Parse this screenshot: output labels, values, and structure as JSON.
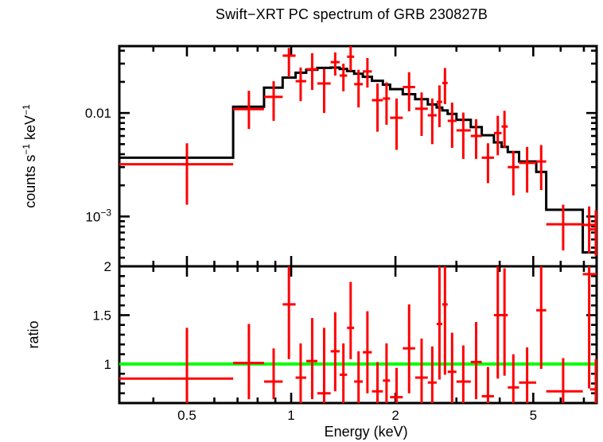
{
  "title": "Swift−XRT PC spectrum of GRB 230827B",
  "colors": {
    "data": "#ff0000",
    "model": "#000000",
    "reference_line": "#00ff00",
    "axes": "#000000",
    "background": "#ffffff"
  },
  "chart_data": [
    {
      "type": "scatter",
      "panel": "spectrum",
      "title": "Swift−XRT PC spectrum of GRB 230827B",
      "xscale": "log",
      "yscale": "log",
      "xlim": [
        0.319,
        7.62
      ],
      "ylim": [
        0.00033,
        0.0443
      ],
      "xlabel": "Energy (keV)",
      "ylabel": "counts s^-1 keV^-1",
      "ylabel_parts": [
        [
          "counts s",
          0
        ],
        [
          "−1",
          1
        ],
        [
          " keV",
          0
        ],
        [
          "−1",
          1
        ]
      ],
      "x_ticks": {
        "major": [
          0.5,
          1,
          2,
          5
        ],
        "minor": [
          0.4,
          0.6,
          0.7,
          0.8,
          0.9,
          3,
          4,
          6,
          7
        ],
        "labels": [
          "0.5",
          "1",
          "2",
          "5"
        ]
      },
      "y_ticks": {
        "major": [
          0.001,
          0.01
        ],
        "minor": [
          0.0004,
          0.0005,
          0.0006,
          0.0007,
          0.0008,
          0.0009,
          0.002,
          0.003,
          0.004,
          0.005,
          0.006,
          0.007,
          0.008,
          0.009,
          0.02,
          0.03,
          0.04
        ],
        "labels_parts": [
          [
            [
              "10",
              0
            ],
            [
              "−3",
              1
            ]
          ],
          [
            [
              "0.01",
              0
            ]
          ]
        ]
      },
      "legend": "none",
      "grid": false,
      "model_step": {
        "edges": [
          0.319,
          0.68,
          0.835,
          0.945,
          1.03,
          1.105,
          1.19,
          1.3,
          1.38,
          1.45,
          1.52,
          1.61,
          1.71,
          1.84,
          1.93,
          2.1,
          2.28,
          2.48,
          2.63,
          2.73,
          2.83,
          3.0,
          3.3,
          3.55,
          3.85,
          4.05,
          4.22,
          4.55,
          5.1,
          5.45,
          6.95,
          7.62
        ],
        "values": [
          0.0037,
          0.0115,
          0.0176,
          0.022,
          0.0245,
          0.0262,
          0.0273,
          0.0275,
          0.0266,
          0.0254,
          0.024,
          0.0224,
          0.0205,
          0.0188,
          0.017,
          0.0152,
          0.0136,
          0.0121,
          0.0113,
          0.0106,
          0.0098,
          0.0086,
          0.0073,
          0.0061,
          0.0052,
          0.0047,
          0.0042,
          0.0034,
          0.0027,
          0.00116,
          0.00045
        ]
      },
      "points_format": [
        "energy_keV",
        "e_lo",
        "e_hi",
        "value",
        "v_lo",
        "v_hi"
      ],
      "points": [
        [
          0.5,
          0.319,
          0.68,
          0.0032,
          0.0013,
          0.0051
        ],
        [
          0.755,
          0.68,
          0.835,
          0.0109,
          0.007,
          0.0164
        ],
        [
          0.89,
          0.835,
          0.945,
          0.0143,
          0.0084,
          0.0203
        ],
        [
          0.985,
          0.945,
          1.03,
          0.0358,
          0.0222,
          0.0425
        ],
        [
          1.065,
          1.03,
          1.105,
          0.0203,
          0.013,
          0.0275
        ],
        [
          1.15,
          1.105,
          1.19,
          0.0265,
          0.0167,
          0.0378
        ],
        [
          1.245,
          1.19,
          1.3,
          0.0193,
          0.01,
          0.0265
        ],
        [
          1.34,
          1.3,
          1.38,
          0.031,
          0.023,
          0.0385
        ],
        [
          1.415,
          1.38,
          1.45,
          0.023,
          0.0162,
          0.03
        ],
        [
          1.485,
          1.45,
          1.52,
          0.035,
          0.0255,
          0.0445
        ],
        [
          1.565,
          1.52,
          1.61,
          0.019,
          0.0113,
          0.0262
        ],
        [
          1.66,
          1.61,
          1.71,
          0.0252,
          0.0176,
          0.034
        ],
        [
          1.775,
          1.71,
          1.84,
          0.0133,
          0.0066,
          0.0193
        ],
        [
          1.885,
          1.84,
          1.93,
          0.0138,
          0.0077,
          0.0198
        ],
        [
          2.015,
          1.93,
          2.1,
          0.009,
          0.0044,
          0.0138
        ],
        [
          2.19,
          2.1,
          2.28,
          0.0178,
          0.0104,
          0.0248
        ],
        [
          2.38,
          2.28,
          2.48,
          0.011,
          0.006,
          0.0158
        ],
        [
          2.555,
          2.48,
          2.63,
          0.0095,
          0.005,
          0.0138
        ],
        [
          2.68,
          2.63,
          2.73,
          0.0128,
          0.0073,
          0.0185
        ],
        [
          2.78,
          2.73,
          2.83,
          0.0195,
          0.0122,
          0.0272
        ],
        [
          2.915,
          2.83,
          3.0,
          0.0084,
          0.0046,
          0.0126
        ],
        [
          3.14,
          3.0,
          3.3,
          0.0068,
          0.0036,
          0.0101
        ],
        [
          3.42,
          3.3,
          3.55,
          0.006,
          0.0036,
          0.0087
        ],
        [
          3.7,
          3.55,
          3.85,
          0.0037,
          0.0021,
          0.0051
        ],
        [
          3.95,
          3.85,
          4.05,
          0.0064,
          0.0039,
          0.0094
        ],
        [
          4.13,
          4.05,
          4.22,
          0.0074,
          0.0046,
          0.0105
        ],
        [
          4.38,
          4.22,
          4.55,
          0.003,
          0.0016,
          0.0043
        ],
        [
          4.8,
          4.55,
          5.1,
          0.0033,
          0.0017,
          0.0047
        ],
        [
          5.27,
          5.1,
          5.45,
          0.0034,
          0.0018,
          0.0049
        ],
        [
          6.1,
          5.45,
          6.95,
          0.00084,
          0.00047,
          0.0013
        ],
        [
          7.25,
          6.95,
          7.62,
          0.00083,
          0.00044,
          0.00125
        ],
        [
          7.58,
          7.3,
          7.62,
          0.00075,
          0.00042,
          0.00115
        ]
      ]
    },
    {
      "type": "scatter",
      "panel": "ratio",
      "xscale": "log",
      "yscale": "linear",
      "xlim": [
        0.319,
        7.62
      ],
      "ylim": [
        0.6,
        2.0
      ],
      "xlabel": "Energy (keV)",
      "ylabel": "ratio",
      "ylabel_parts": [
        [
          "ratio",
          0
        ]
      ],
      "x_ticks": {
        "major": [
          0.5,
          1,
          2,
          5
        ],
        "minor": [
          0.4,
          0.6,
          0.7,
          0.8,
          0.9,
          3,
          4,
          6,
          7
        ],
        "labels": [
          "0.5",
          "1",
          "2",
          "5"
        ]
      },
      "y_ticks": {
        "major": [
          1,
          1.5,
          2
        ],
        "minor": [
          0.7,
          0.8,
          0.9,
          1.1,
          1.2,
          1.3,
          1.4,
          1.6,
          1.7,
          1.8,
          1.9
        ],
        "labels_parts": [
          [
            [
              "1",
              0
            ]
          ],
          [
            [
              "1.5",
              0
            ]
          ],
          [
            [
              "2",
              0
            ]
          ]
        ]
      },
      "reference_line": 1.0,
      "grid": false,
      "points_format": [
        "energy_keV",
        "e_lo",
        "e_hi",
        "ratio",
        "r_lo",
        "r_hi"
      ],
      "points": [
        [
          0.5,
          0.319,
          0.68,
          0.85,
          0.55,
          1.37
        ],
        [
          0.755,
          0.68,
          0.835,
          1.01,
          0.64,
          1.41
        ],
        [
          0.89,
          0.835,
          0.945,
          0.82,
          0.64,
          1.16
        ],
        [
          0.985,
          0.945,
          1.03,
          1.61,
          1.05,
          2.05
        ],
        [
          1.065,
          1.03,
          1.105,
          0.86,
          0.58,
          1.21
        ],
        [
          1.15,
          1.105,
          1.19,
          1.03,
          0.64,
          1.47
        ],
        [
          1.245,
          1.19,
          1.3,
          0.7,
          0.57,
          1.37
        ],
        [
          1.34,
          1.3,
          1.38,
          1.13,
          0.72,
          1.53
        ],
        [
          1.415,
          1.38,
          1.45,
          0.89,
          0.58,
          1.21
        ],
        [
          1.485,
          1.45,
          1.52,
          1.37,
          1.05,
          1.84
        ],
        [
          1.565,
          1.52,
          1.61,
          0.82,
          0.58,
          1.13
        ],
        [
          1.66,
          1.61,
          1.71,
          1.12,
          0.7,
          1.54
        ],
        [
          1.775,
          1.71,
          1.84,
          0.72,
          0.55,
          1.02
        ],
        [
          1.885,
          1.84,
          1.93,
          0.83,
          0.55,
          1.21
        ],
        [
          2.015,
          1.93,
          2.1,
          0.66,
          0.52,
          0.96
        ],
        [
          2.19,
          2.1,
          2.28,
          1.16,
          0.7,
          1.61
        ],
        [
          2.38,
          2.28,
          2.48,
          0.86,
          0.54,
          1.26
        ],
        [
          2.555,
          2.48,
          2.63,
          0.81,
          0.52,
          1.18
        ],
        [
          2.68,
          2.63,
          2.73,
          1.41,
          0.84,
          2.05
        ],
        [
          2.78,
          2.73,
          2.83,
          1.61,
          0.89,
          2.05
        ],
        [
          2.915,
          2.83,
          3.0,
          0.92,
          0.6,
          1.32
        ],
        [
          3.14,
          3.0,
          3.3,
          0.82,
          0.52,
          1.19
        ],
        [
          3.42,
          3.3,
          3.55,
          1.02,
          0.64,
          1.43
        ],
        [
          3.7,
          3.55,
          3.85,
          0.67,
          0.52,
          0.97
        ],
        [
          3.95,
          3.85,
          4.05,
          1.5,
          0.85,
          2.0
        ],
        [
          4.13,
          4.05,
          4.22,
          1.5,
          0.88,
          1.98
        ],
        [
          4.38,
          4.22,
          4.55,
          0.76,
          0.52,
          1.1
        ],
        [
          4.8,
          4.55,
          5.1,
          0.81,
          0.54,
          1.17
        ],
        [
          5.27,
          5.1,
          5.45,
          1.55,
          0.95,
          2.02
        ],
        [
          6.1,
          5.45,
          6.95,
          0.72,
          0.47,
          1.06
        ],
        [
          7.25,
          6.95,
          7.62,
          1.92,
          0.75,
          2.05
        ],
        [
          7.58,
          7.3,
          7.62,
          0.74,
          0.55,
          1.05
        ]
      ]
    }
  ]
}
